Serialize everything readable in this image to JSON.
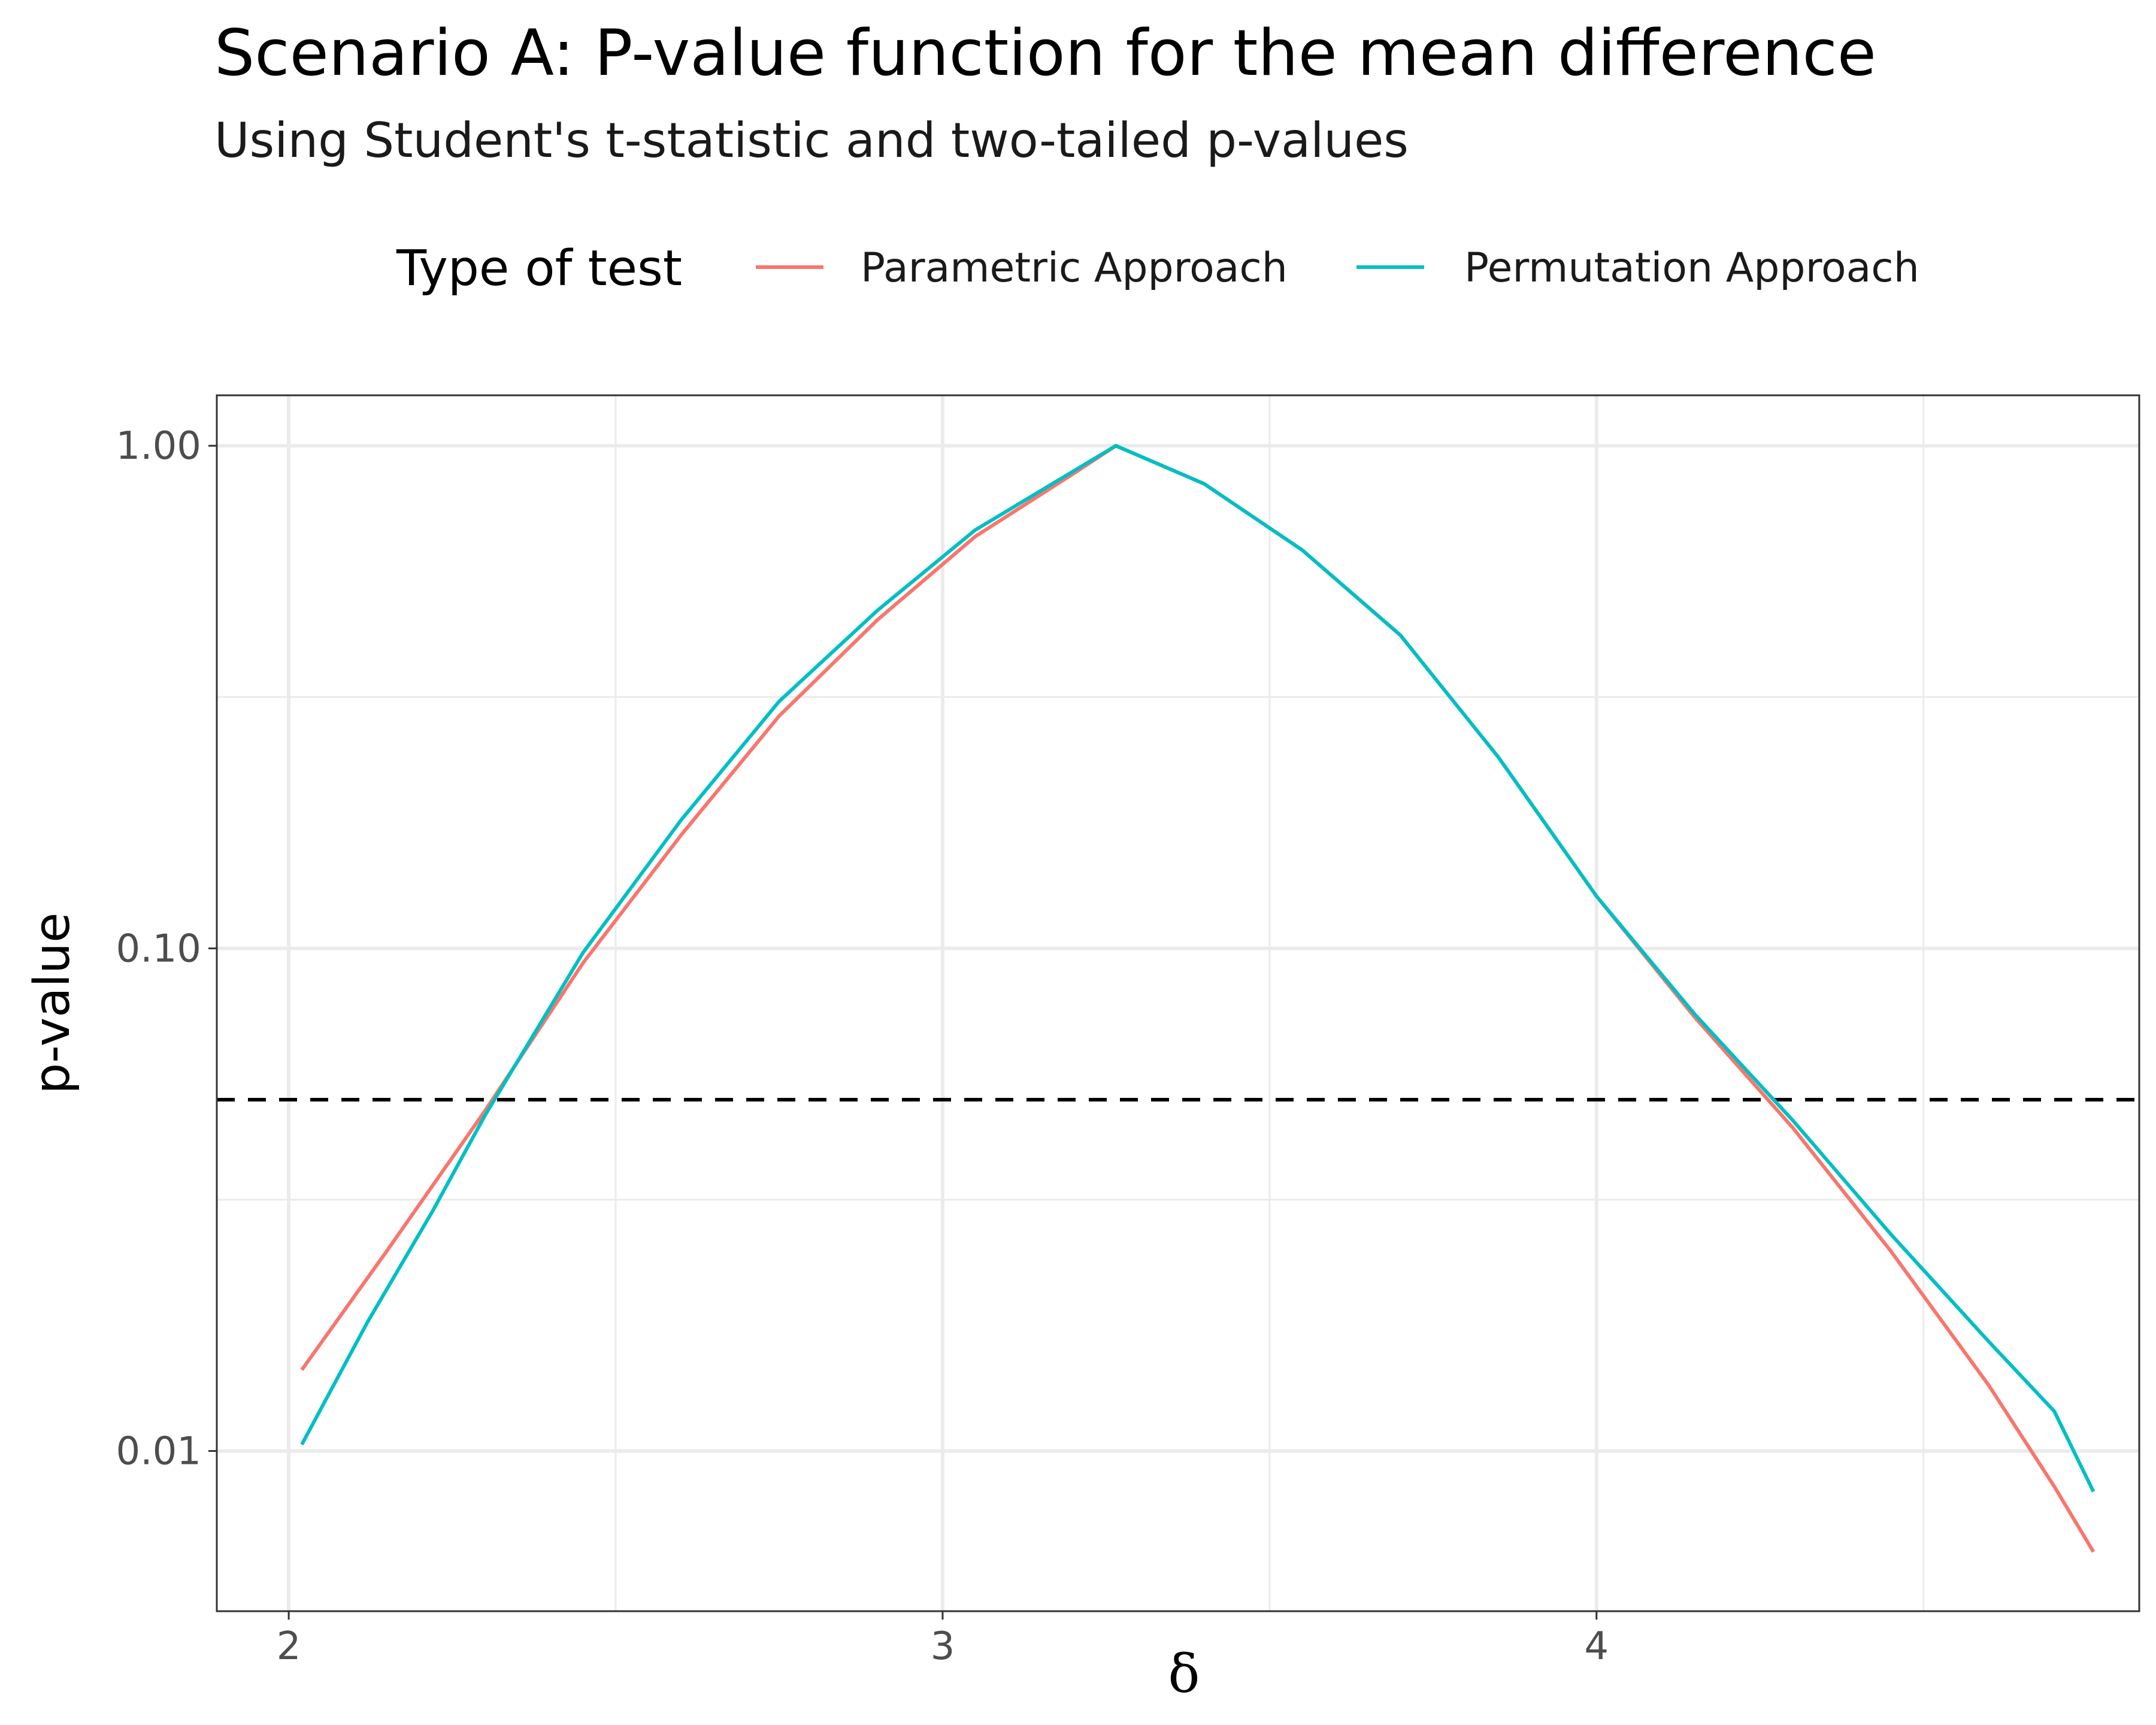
{
  "chart_data": {
    "type": "line",
    "title": "Scenario A: P-value function for the mean difference",
    "subtitle": "Using Student's t-statistic and two-tailed p-values",
    "xlabel": "δ",
    "ylabel": "p-value",
    "legend_title": "Type of test",
    "legend_position": "top",
    "grid": true,
    "y_scale": "log10",
    "xlim": [
      1.89,
      4.83
    ],
    "ylim": [
      0.0048,
      1.26
    ],
    "x_ticks": [
      2,
      3,
      4
    ],
    "x_tick_labels": [
      "2",
      "3",
      "4"
    ],
    "y_ticks": [
      0.01,
      0.1,
      1
    ],
    "y_tick_labels": [
      "0.01",
      "0.10",
      "1.00"
    ],
    "reference_line": {
      "y": 0.05,
      "style": "dashed",
      "color": "#000000"
    },
    "series": [
      {
        "name": "Parametric Approach",
        "color": "#F8766D",
        "points": [
          [
            2.02,
            0.0145
          ],
          [
            2.15,
            0.025
          ],
          [
            2.3,
            0.0475
          ],
          [
            2.45,
            0.0935
          ],
          [
            2.6,
            0.168
          ],
          [
            2.75,
            0.29
          ],
          [
            2.9,
            0.45
          ],
          [
            3.05,
            0.66
          ],
          [
            3.2,
            0.88
          ],
          [
            3.265,
            1.0
          ],
          [
            3.4,
            0.84
          ],
          [
            3.55,
            0.62
          ],
          [
            3.7,
            0.42
          ],
          [
            3.85,
            0.24
          ],
          [
            4.0,
            0.127
          ],
          [
            4.15,
            0.073
          ],
          [
            4.3,
            0.044
          ],
          [
            4.45,
            0.025
          ],
          [
            4.6,
            0.0135
          ],
          [
            4.7,
            0.0085
          ],
          [
            4.76,
            0.0063
          ]
        ]
      },
      {
        "name": "Permutation Approach",
        "color": "#00BFC4",
        "points": [
          [
            2.02,
            0.0103
          ],
          [
            2.12,
            0.018
          ],
          [
            2.22,
            0.03
          ],
          [
            2.3,
            0.0465
          ],
          [
            2.45,
            0.098
          ],
          [
            2.6,
            0.18
          ],
          [
            2.75,
            0.31
          ],
          [
            2.9,
            0.47
          ],
          [
            3.05,
            0.68
          ],
          [
            3.2,
            0.89
          ],
          [
            3.265,
            1.0
          ],
          [
            3.4,
            0.84
          ],
          [
            3.55,
            0.62
          ],
          [
            3.7,
            0.42
          ],
          [
            3.85,
            0.24
          ],
          [
            4.0,
            0.127
          ],
          [
            4.15,
            0.074
          ],
          [
            4.3,
            0.0455
          ],
          [
            4.45,
            0.027
          ],
          [
            4.6,
            0.0165
          ],
          [
            4.7,
            0.012
          ],
          [
            4.76,
            0.0083
          ]
        ]
      }
    ]
  }
}
